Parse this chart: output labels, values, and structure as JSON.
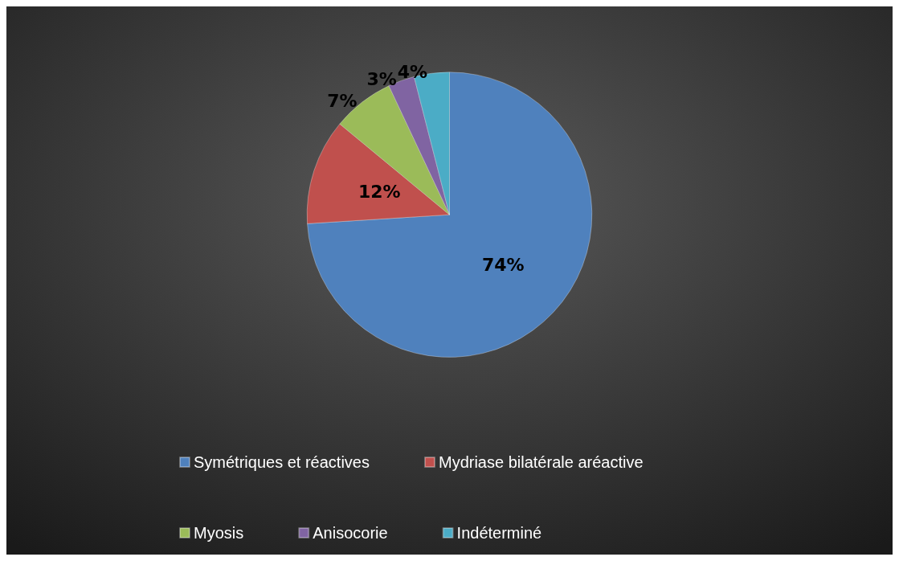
{
  "chart_data": {
    "type": "pie",
    "categories": [
      "Symétriques et réactives",
      "Mydriase bilatérale aréactive",
      "Myosis",
      "Anisocorie",
      "Indéterminé"
    ],
    "values": [
      74,
      12,
      7,
      3,
      4
    ],
    "colors": [
      "#4f81bd",
      "#c0504d",
      "#9bbb59",
      "#8064a2",
      "#4bacc6"
    ],
    "value_labels": [
      "74%",
      "12%",
      "7%",
      "3%",
      "4%"
    ],
    "legend": "bottom"
  }
}
